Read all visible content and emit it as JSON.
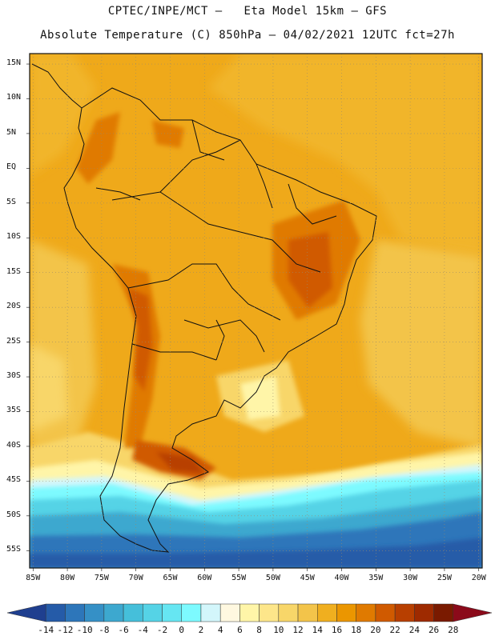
{
  "header": {
    "line1": "CPTEC/INPE/MCT –   Eta Model 15km – GFS",
    "line2": "Absolute Temperature (C) 850hPa – 04/02/2021 12UTC fct=27h"
  },
  "map": {
    "lat_labels": [
      "15N",
      "10N",
      "5N",
      "EQ",
      "5S",
      "10S",
      "15S",
      "20S",
      "25S",
      "30S",
      "35S",
      "40S",
      "45S",
      "50S",
      "55S"
    ],
    "lat_values": [
      15,
      10,
      5,
      0,
      -5,
      -10,
      -15,
      -20,
      -25,
      -30,
      -35,
      -40,
      -45,
      -50,
      -55
    ],
    "lon_labels": [
      "85W",
      "80W",
      "75W",
      "70W",
      "65W",
      "60W",
      "55W",
      "50W",
      "45W",
      "40W",
      "35W",
      "30W",
      "25W",
      "20W"
    ],
    "lon_values": [
      -85,
      -80,
      -75,
      -70,
      -65,
      -60,
      -55,
      -50,
      -45,
      -40,
      -35,
      -30,
      -25,
      -20
    ],
    "lon_range": [
      -85.5,
      -19.5
    ],
    "lat_range": [
      -57.5,
      16.5
    ],
    "gridlines": "dotted"
  },
  "colorbar": {
    "labels": [
      "-14",
      "-12",
      "-10",
      "-8",
      "-6",
      "-4",
      "-2",
      "0",
      "2",
      "4",
      "6",
      "8",
      "10",
      "12",
      "14",
      "16",
      "18",
      "20",
      "22",
      "24",
      "26",
      "28"
    ],
    "colors": [
      "#1f3f8f",
      "#255ba8",
      "#2d76ba",
      "#3590c6",
      "#3da8cf",
      "#45bfda",
      "#55d3e6",
      "#66e6f2",
      "#7dfaff",
      "#d3f6fb",
      "#fff8e0",
      "#fff5a8",
      "#fde68a",
      "#f8d669",
      "#f3c44a",
      "#f0af1f",
      "#eb9600",
      "#e07a00",
      "#d05a00",
      "#b83f00",
      "#9e2a00",
      "#7a1a00",
      "#8b0a1a"
    ]
  }
}
